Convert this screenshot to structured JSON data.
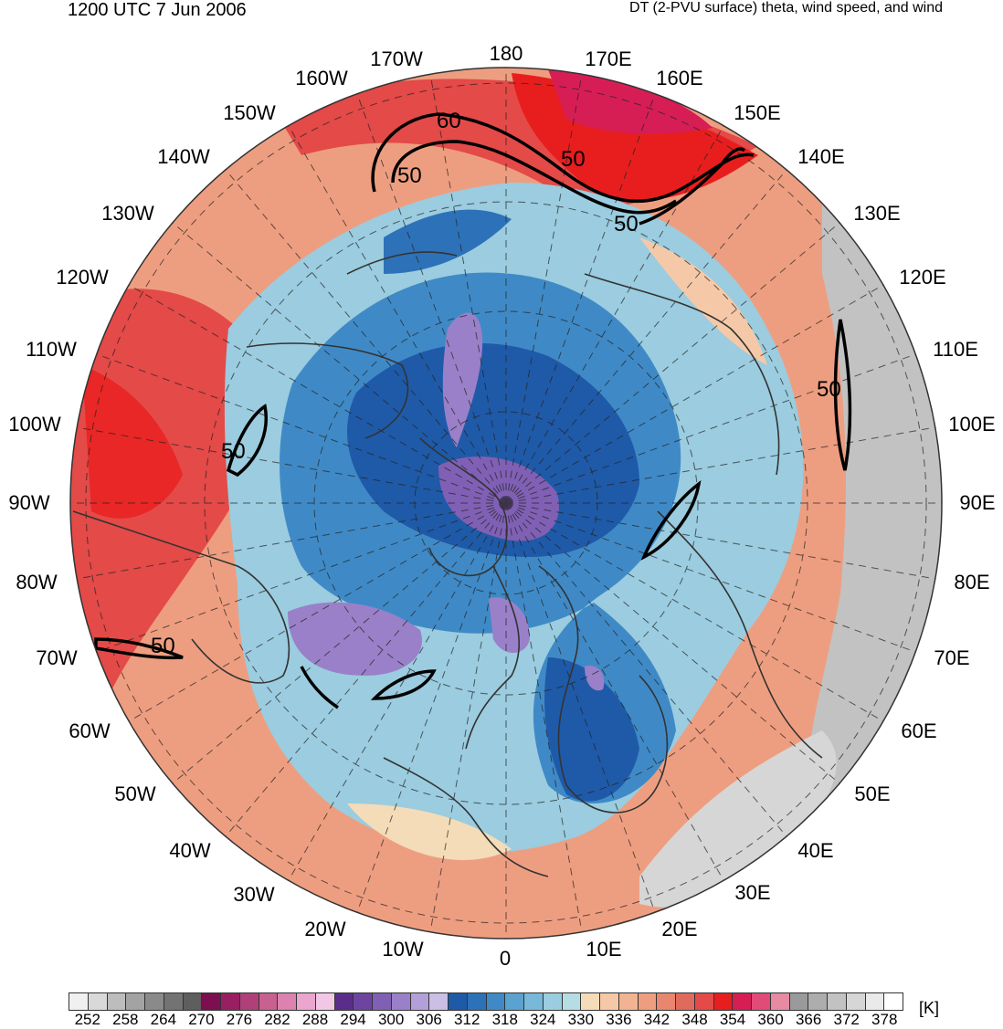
{
  "header": {
    "time_label": "1200 UTC 7 Jun 2006",
    "field_label": "DT (2-PVU surface) theta, wind speed, and wind"
  },
  "map": {
    "projection": "north-polar-stereographic",
    "longitude_labels": [
      "180",
      "170E",
      "160E",
      "150E",
      "140E",
      "130E",
      "120E",
      "110E",
      "100E",
      "90E",
      "80E",
      "70E",
      "60E",
      "50E",
      "40E",
      "30E",
      "20E",
      "10E",
      "0",
      "10W",
      "20W",
      "30W",
      "40W",
      "50W",
      "60W",
      "70W",
      "80W",
      "90W",
      "100W",
      "110W",
      "120W",
      "130W",
      "140W",
      "150W",
      "160W",
      "170W"
    ],
    "wind_speed_contour_labels": [
      "60",
      "50",
      "50",
      "50",
      "50",
      "50",
      "50"
    ]
  },
  "colorbar": {
    "units": "[K]",
    "tick_labels": [
      "252",
      "258",
      "264",
      "270",
      "276",
      "282",
      "288",
      "294",
      "300",
      "306",
      "312",
      "318",
      "324",
      "330",
      "336",
      "342",
      "348",
      "354",
      "360",
      "366",
      "372",
      "378"
    ],
    "colors": [
      "#f0f0f0",
      "#d9d9d9",
      "#bdbdbd",
      "#a3a3a3",
      "#8a8a8a",
      "#737373",
      "#5e5e5e",
      "#7b0f4f",
      "#992060",
      "#b0407a",
      "#c86090",
      "#dc82b0",
      "#eaa6cf",
      "#f2c7e6",
      "#5b2d8a",
      "#6d45a0",
      "#8060b4",
      "#9a80c8",
      "#b4a0d8",
      "#cbbfe6",
      "#1f5aa8",
      "#2d72b8",
      "#3f8ac6",
      "#5aa2cf",
      "#78b8d8",
      "#9bccdf",
      "#b7dde4",
      "#f4dcb8",
      "#f5c9a8",
      "#f2b392",
      "#ee9e80",
      "#e88670",
      "#e06a5d",
      "#e34a48",
      "#e81e1e",
      "#d61e55",
      "#e04b78",
      "#e88aa2",
      "#9a9a9a",
      "#adadad",
      "#c2c2c2",
      "#d6d6d6",
      "#eaeaea",
      "#ffffff"
    ]
  }
}
